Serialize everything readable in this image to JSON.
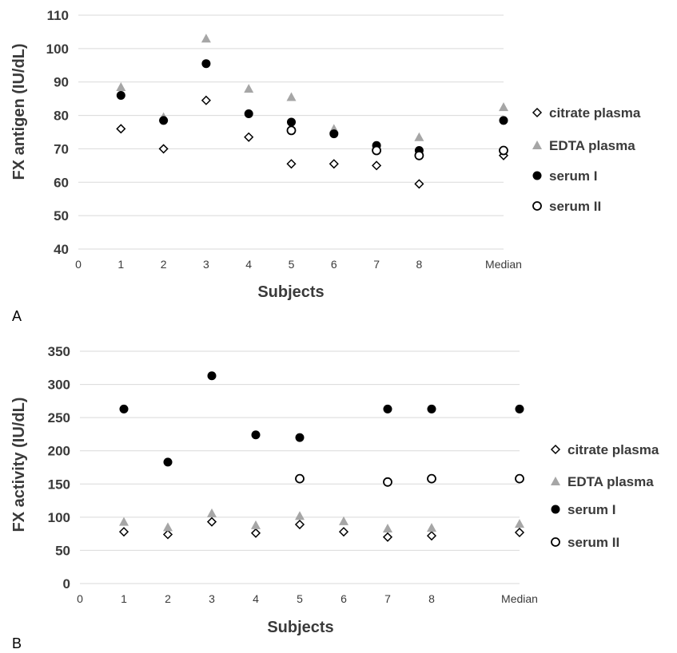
{
  "colors": {
    "grid": "#d9d9d9",
    "text": "#3a3a3a",
    "citrate_plasma": "#000000",
    "edta_plasma": "#a6a6a6",
    "serum_i": "#000000",
    "serum_ii": "#000000"
  },
  "chart_data": [
    {
      "panel": "A",
      "type": "scatter",
      "xlabel": "Subjects",
      "ylabel": "FX antigen (IU/dL)",
      "ylim": [
        40,
        110
      ],
      "yticks": [
        40,
        50,
        60,
        70,
        80,
        90,
        100,
        110
      ],
      "xticks": [
        "0",
        "1",
        "2",
        "3",
        "4",
        "5",
        "6",
        "7",
        "8",
        "Median"
      ],
      "grid": "horizontal",
      "legend_position": "right",
      "series": [
        {
          "name": "citrate plasma",
          "marker": "diamond-open",
          "values": [
            76,
            70,
            84.5,
            73.5,
            65.5,
            65.5,
            65,
            59.5,
            68
          ]
        },
        {
          "name": "EDTA plasma",
          "marker": "triangle-gray",
          "values": [
            88.5,
            79.5,
            103,
            88,
            85.5,
            76,
            70.5,
            73.5,
            82.5
          ]
        },
        {
          "name": "serum I",
          "marker": "circle-filled",
          "values": [
            86,
            78.5,
            95.5,
            80.5,
            78,
            74.5,
            71,
            69.5,
            78.5
          ]
        },
        {
          "name": "serum II",
          "marker": "circle-open",
          "values": [
            null,
            null,
            null,
            null,
            75.5,
            null,
            69.5,
            68,
            69.5
          ]
        }
      ]
    },
    {
      "panel": "B",
      "type": "scatter",
      "xlabel": "Subjects",
      "ylabel": "FX activity (IU/dL)",
      "ylim": [
        0,
        350
      ],
      "yticks": [
        0,
        50,
        100,
        150,
        200,
        250,
        300,
        350
      ],
      "xticks": [
        "0",
        "1",
        "2",
        "3",
        "4",
        "5",
        "6",
        "7",
        "8",
        "Median"
      ],
      "grid": "horizontal",
      "legend_position": "right",
      "series": [
        {
          "name": "citrate plasma",
          "marker": "diamond-open",
          "values": [
            78,
            74,
            93,
            76,
            89,
            78,
            70,
            72,
            77
          ]
        },
        {
          "name": "EDTA plasma",
          "marker": "triangle-gray",
          "values": [
            93,
            85,
            106,
            88,
            102,
            94,
            83,
            84,
            90
          ]
        },
        {
          "name": "serum I",
          "marker": "circle-filled",
          "values": [
            263,
            183,
            313,
            224,
            220,
            null,
            263,
            263,
            263
          ]
        },
        {
          "name": "serum II",
          "marker": "circle-open",
          "values": [
            null,
            null,
            null,
            null,
            158,
            null,
            153,
            158,
            158
          ]
        }
      ]
    }
  ]
}
